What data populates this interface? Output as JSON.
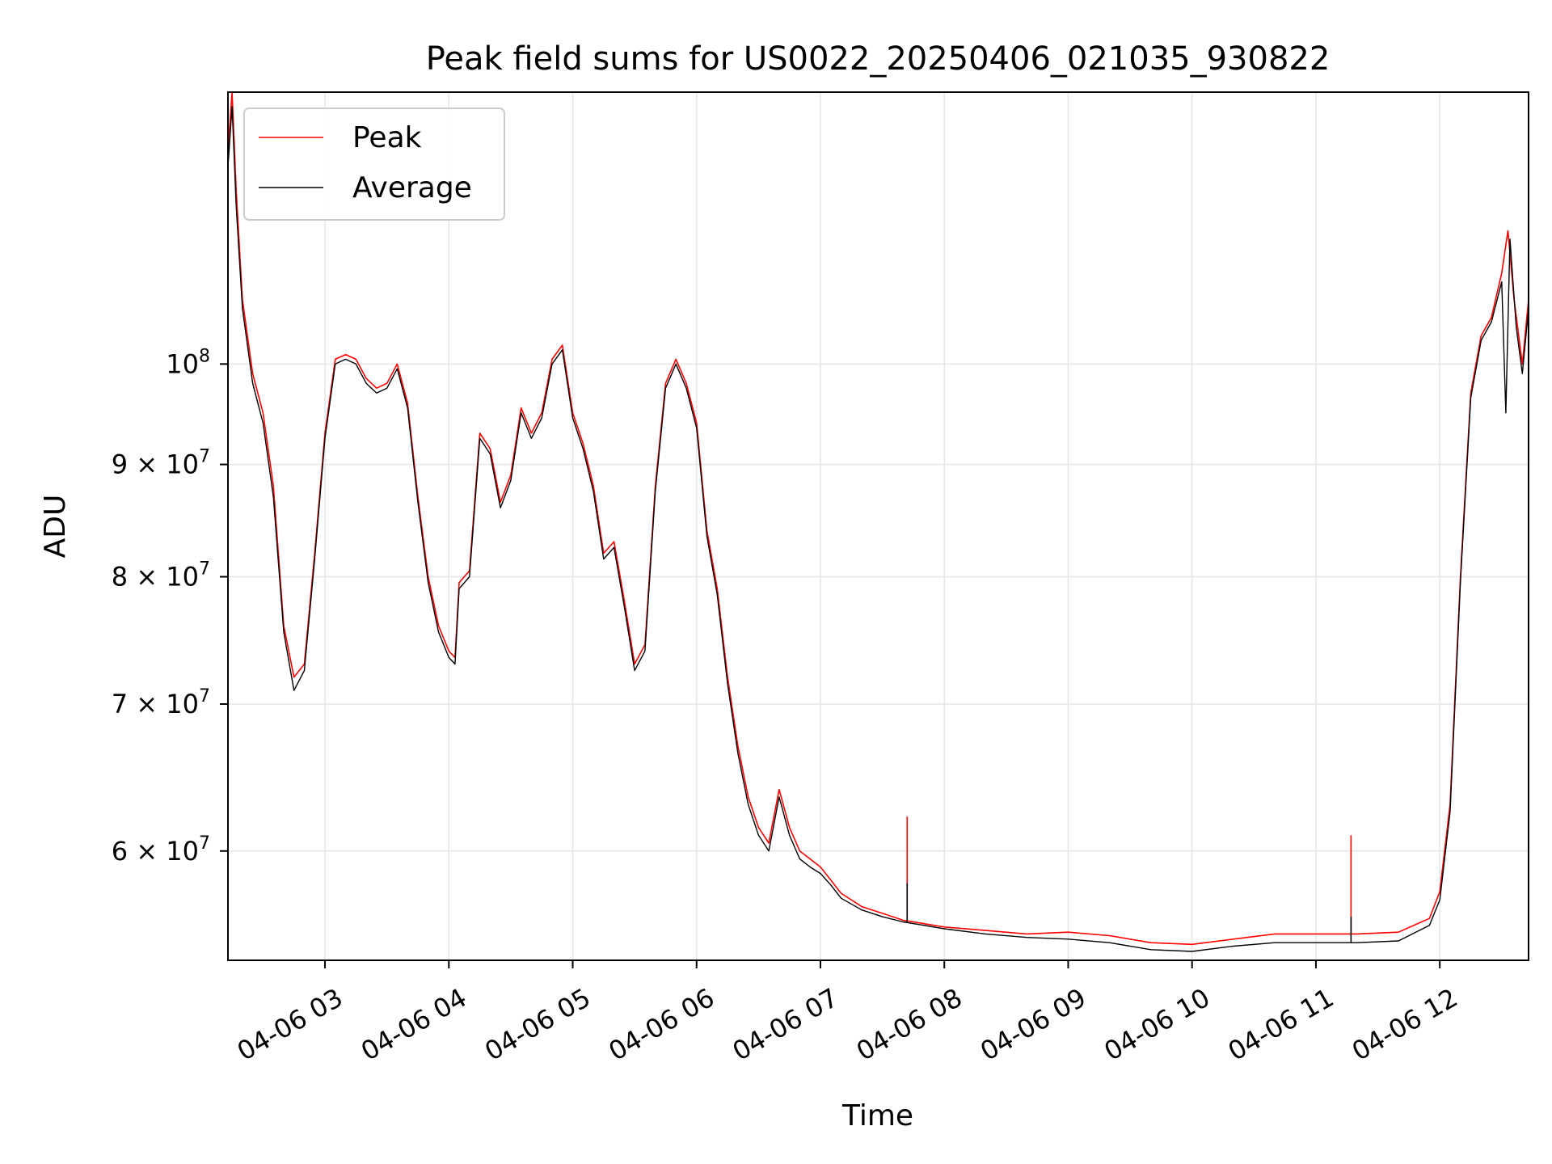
{
  "chart_data": {
    "type": "line",
    "title": "Peak field sums for US0022_20250406_021035_930822",
    "xlabel": "Time",
    "ylabel": "ADU",
    "y_scale": "log",
    "grid": true,
    "legend_position": "top-left",
    "xlim": [
      "04-06 02:13",
      "04-06 12:43"
    ],
    "ylim": [
      53500000,
      133000000
    ],
    "x_ticks": [
      {
        "label": "04-06 03",
        "value": "04-06 03:00"
      },
      {
        "label": "04-06 04",
        "value": "04-06 04:00"
      },
      {
        "label": "04-06 05",
        "value": "04-06 05:00"
      },
      {
        "label": "04-06 06",
        "value": "04-06 06:00"
      },
      {
        "label": "04-06 07",
        "value": "04-06 07:00"
      },
      {
        "label": "04-06 08",
        "value": "04-06 08:00"
      },
      {
        "label": "04-06 09",
        "value": "04-06 09:00"
      },
      {
        "label": "04-06 10",
        "value": "04-06 10:00"
      },
      {
        "label": "04-06 11",
        "value": "04-06 11:00"
      },
      {
        "label": "04-06 12",
        "value": "04-06 12:00"
      }
    ],
    "y_ticks": [
      {
        "base": "6 × 10",
        "exp": "7",
        "value": 60000000
      },
      {
        "base": "7 × 10",
        "exp": "7",
        "value": 70000000
      },
      {
        "base": "8 × 10",
        "exp": "7",
        "value": 80000000
      },
      {
        "base": "9 × 10",
        "exp": "7",
        "value": 90000000
      },
      {
        "base": "10",
        "exp": "8",
        "value": 100000000
      }
    ],
    "series": [
      {
        "name": "Peak",
        "color": "#ff0000",
        "points": [
          [
            "04-06 02:13",
            125000000
          ],
          [
            "04-06 02:15",
            133000000
          ],
          [
            "04-06 02:17",
            120000000
          ],
          [
            "04-06 02:20",
            107000000
          ],
          [
            "04-06 02:25",
            99000000
          ],
          [
            "04-06 02:30",
            95000000
          ],
          [
            "04-06 02:35",
            88000000
          ],
          [
            "04-06 02:40",
            76000000
          ],
          [
            "04-06 02:45",
            72000000
          ],
          [
            "04-06 02:50",
            73000000
          ],
          [
            "04-06 02:55",
            82000000
          ],
          [
            "04-06 03:00",
            93000000
          ],
          [
            "04-06 03:05",
            100500000
          ],
          [
            "04-06 03:10",
            101000000
          ],
          [
            "04-06 03:15",
            100500000
          ],
          [
            "04-06 03:20",
            98500000
          ],
          [
            "04-06 03:25",
            97500000
          ],
          [
            "04-06 03:30",
            98000000
          ],
          [
            "04-06 03:35",
            100000000
          ],
          [
            "04-06 03:40",
            96000000
          ],
          [
            "04-06 03:45",
            87000000
          ],
          [
            "04-06 03:50",
            80000000
          ],
          [
            "04-06 03:55",
            76000000
          ],
          [
            "04-06 04:00",
            74000000
          ],
          [
            "04-06 04:03",
            73500000
          ],
          [
            "04-06 04:05",
            79500000
          ],
          [
            "04-06 04:10",
            80500000
          ],
          [
            "04-06 04:15",
            93000000
          ],
          [
            "04-06 04:20",
            91500000
          ],
          [
            "04-06 04:25",
            86500000
          ],
          [
            "04-06 04:30",
            89000000
          ],
          [
            "04-06 04:35",
            95500000
          ],
          [
            "04-06 04:40",
            93000000
          ],
          [
            "04-06 04:45",
            95000000
          ],
          [
            "04-06 04:50",
            100500000
          ],
          [
            "04-06 04:55",
            102000000
          ],
          [
            "04-06 05:00",
            95000000
          ],
          [
            "04-06 05:05",
            92000000
          ],
          [
            "04-06 05:10",
            88000000
          ],
          [
            "04-06 05:15",
            82000000
          ],
          [
            "04-06 05:20",
            83000000
          ],
          [
            "04-06 05:25",
            78000000
          ],
          [
            "04-06 05:30",
            73000000
          ],
          [
            "04-06 05:35",
            74500000
          ],
          [
            "04-06 05:40",
            88000000
          ],
          [
            "04-06 05:45",
            98000000
          ],
          [
            "04-06 05:50",
            100500000
          ],
          [
            "04-06 05:55",
            98000000
          ],
          [
            "04-06 06:00",
            94000000
          ],
          [
            "04-06 06:05",
            84000000
          ],
          [
            "04-06 06:10",
            79000000
          ],
          [
            "04-06 06:15",
            72000000
          ],
          [
            "04-06 06:20",
            67000000
          ],
          [
            "04-06 06:25",
            63500000
          ],
          [
            "04-06 06:30",
            61500000
          ],
          [
            "04-06 06:35",
            60500000
          ],
          [
            "04-06 06:40",
            64000000
          ],
          [
            "04-06 06:45",
            61500000
          ],
          [
            "04-06 06:50",
            60000000
          ],
          [
            "04-06 06:55",
            59500000
          ],
          [
            "04-06 07:00",
            59000000
          ],
          [
            "04-06 07:05",
            58200000
          ],
          [
            "04-06 07:10",
            57400000
          ],
          [
            "04-06 07:20",
            56600000
          ],
          [
            "04-06 07:30",
            56200000
          ],
          [
            "04-06 07:40",
            55800000
          ],
          [
            "04-06 07:50",
            55600000
          ],
          [
            "04-06 08:00",
            55400000
          ],
          [
            "04-06 08:20",
            55200000
          ],
          [
            "04-06 08:40",
            55000000
          ],
          [
            "04-06 09:00",
            55100000
          ],
          [
            "04-06 09:20",
            54900000
          ],
          [
            "04-06 09:40",
            54500000
          ],
          [
            "04-06 10:00",
            54400000
          ],
          [
            "04-06 10:20",
            54700000
          ],
          [
            "04-06 10:40",
            55000000
          ],
          [
            "04-06 11:00",
            55000000
          ],
          [
            "04-06 11:20",
            55000000
          ],
          [
            "04-06 11:40",
            55100000
          ],
          [
            "04-06 11:55",
            55900000
          ],
          [
            "04-06 12:00",
            57500000
          ],
          [
            "04-06 12:05",
            63000000
          ],
          [
            "04-06 12:10",
            80000000
          ],
          [
            "04-06 12:15",
            97000000
          ],
          [
            "04-06 12:20",
            103000000
          ],
          [
            "04-06 12:25",
            105000000
          ],
          [
            "04-06 12:30",
            110000000
          ],
          [
            "04-06 12:33",
            115000000
          ],
          [
            "04-06 12:36",
            107000000
          ],
          [
            "04-06 12:40",
            100000000
          ],
          [
            "04-06 12:43",
            107000000
          ]
        ]
      },
      {
        "name": "Average",
        "color": "#000000",
        "points": [
          [
            "04-06 02:13",
            123000000
          ],
          [
            "04-06 02:15",
            131000000
          ],
          [
            "04-06 02:17",
            118000000
          ],
          [
            "04-06 02:20",
            106000000
          ],
          [
            "04-06 02:25",
            98000000
          ],
          [
            "04-06 02:30",
            94000000
          ],
          [
            "04-06 02:35",
            87000000
          ],
          [
            "04-06 02:40",
            75500000
          ],
          [
            "04-06 02:45",
            71000000
          ],
          [
            "04-06 02:50",
            72500000
          ],
          [
            "04-06 02:55",
            81500000
          ],
          [
            "04-06 03:00",
            92500000
          ],
          [
            "04-06 03:05",
            100000000
          ],
          [
            "04-06 03:10",
            100500000
          ],
          [
            "04-06 03:15",
            100000000
          ],
          [
            "04-06 03:20",
            98000000
          ],
          [
            "04-06 03:25",
            97000000
          ],
          [
            "04-06 03:30",
            97500000
          ],
          [
            "04-06 03:35",
            99500000
          ],
          [
            "04-06 03:40",
            95500000
          ],
          [
            "04-06 03:45",
            86500000
          ],
          [
            "04-06 03:50",
            79500000
          ],
          [
            "04-06 03:55",
            75500000
          ],
          [
            "04-06 04:00",
            73500000
          ],
          [
            "04-06 04:03",
            73000000
          ],
          [
            "04-06 04:05",
            79000000
          ],
          [
            "04-06 04:10",
            80000000
          ],
          [
            "04-06 04:15",
            92500000
          ],
          [
            "04-06 04:20",
            91000000
          ],
          [
            "04-06 04:25",
            86000000
          ],
          [
            "04-06 04:30",
            88500000
          ],
          [
            "04-06 04:35",
            95000000
          ],
          [
            "04-06 04:40",
            92500000
          ],
          [
            "04-06 04:45",
            94500000
          ],
          [
            "04-06 04:50",
            100000000
          ],
          [
            "04-06 04:55",
            101500000
          ],
          [
            "04-06 05:00",
            94500000
          ],
          [
            "04-06 05:05",
            91500000
          ],
          [
            "04-06 05:10",
            87500000
          ],
          [
            "04-06 05:15",
            81500000
          ],
          [
            "04-06 05:20",
            82500000
          ],
          [
            "04-06 05:25",
            77500000
          ],
          [
            "04-06 05:30",
            72500000
          ],
          [
            "04-06 05:35",
            74000000
          ],
          [
            "04-06 05:40",
            87500000
          ],
          [
            "04-06 05:45",
            97500000
          ],
          [
            "04-06 05:50",
            100000000
          ],
          [
            "04-06 05:55",
            97500000
          ],
          [
            "04-06 06:00",
            93500000
          ],
          [
            "04-06 06:05",
            83500000
          ],
          [
            "04-06 06:10",
            78500000
          ],
          [
            "04-06 06:15",
            71500000
          ],
          [
            "04-06 06:20",
            66500000
          ],
          [
            "04-06 06:25",
            63000000
          ],
          [
            "04-06 06:30",
            61000000
          ],
          [
            "04-06 06:35",
            60000000
          ],
          [
            "04-06 06:40",
            63500000
          ],
          [
            "04-06 06:45",
            61000000
          ],
          [
            "04-06 06:50",
            59500000
          ],
          [
            "04-06 06:55",
            59000000
          ],
          [
            "04-06 07:00",
            58600000
          ],
          [
            "04-06 07:05",
            57900000
          ],
          [
            "04-06 07:10",
            57100000
          ],
          [
            "04-06 07:20",
            56400000
          ],
          [
            "04-06 07:30",
            56000000
          ],
          [
            "04-06 07:40",
            55700000
          ],
          [
            "04-06 07:50",
            55500000
          ],
          [
            "04-06 08:00",
            55300000
          ],
          [
            "04-06 08:20",
            55000000
          ],
          [
            "04-06 08:40",
            54800000
          ],
          [
            "04-06 09:00",
            54700000
          ],
          [
            "04-06 09:20",
            54500000
          ],
          [
            "04-06 09:40",
            54100000
          ],
          [
            "04-06 10:00",
            54000000
          ],
          [
            "04-06 10:20",
            54300000
          ],
          [
            "04-06 10:40",
            54500000
          ],
          [
            "04-06 11:00",
            54500000
          ],
          [
            "04-06 11:20",
            54500000
          ],
          [
            "04-06 11:40",
            54600000
          ],
          [
            "04-06 11:55",
            55500000
          ],
          [
            "04-06 12:00",
            57000000
          ],
          [
            "04-06 12:05",
            62500000
          ],
          [
            "04-06 12:10",
            79500000
          ],
          [
            "04-06 12:15",
            96500000
          ],
          [
            "04-06 12:20",
            102500000
          ],
          [
            "04-06 12:25",
            104500000
          ],
          [
            "04-06 12:30",
            109000000
          ],
          [
            "04-06 12:32",
            95000000
          ],
          [
            "04-06 12:34",
            114000000
          ],
          [
            "04-06 12:37",
            104000000
          ],
          [
            "04-06 12:40",
            99000000
          ],
          [
            "04-06 12:43",
            106000000
          ]
        ]
      }
    ],
    "annotations_spikes": [
      {
        "series": "Peak",
        "x": "04-06 07:42",
        "value": 62200000
      },
      {
        "series": "Peak",
        "x": "04-06 11:17",
        "value": 61000000
      },
      {
        "series": "Average",
        "x": "04-06 07:42",
        "value": 58000000
      },
      {
        "series": "Average",
        "x": "04-06 11:17",
        "value": 56000000
      }
    ]
  }
}
